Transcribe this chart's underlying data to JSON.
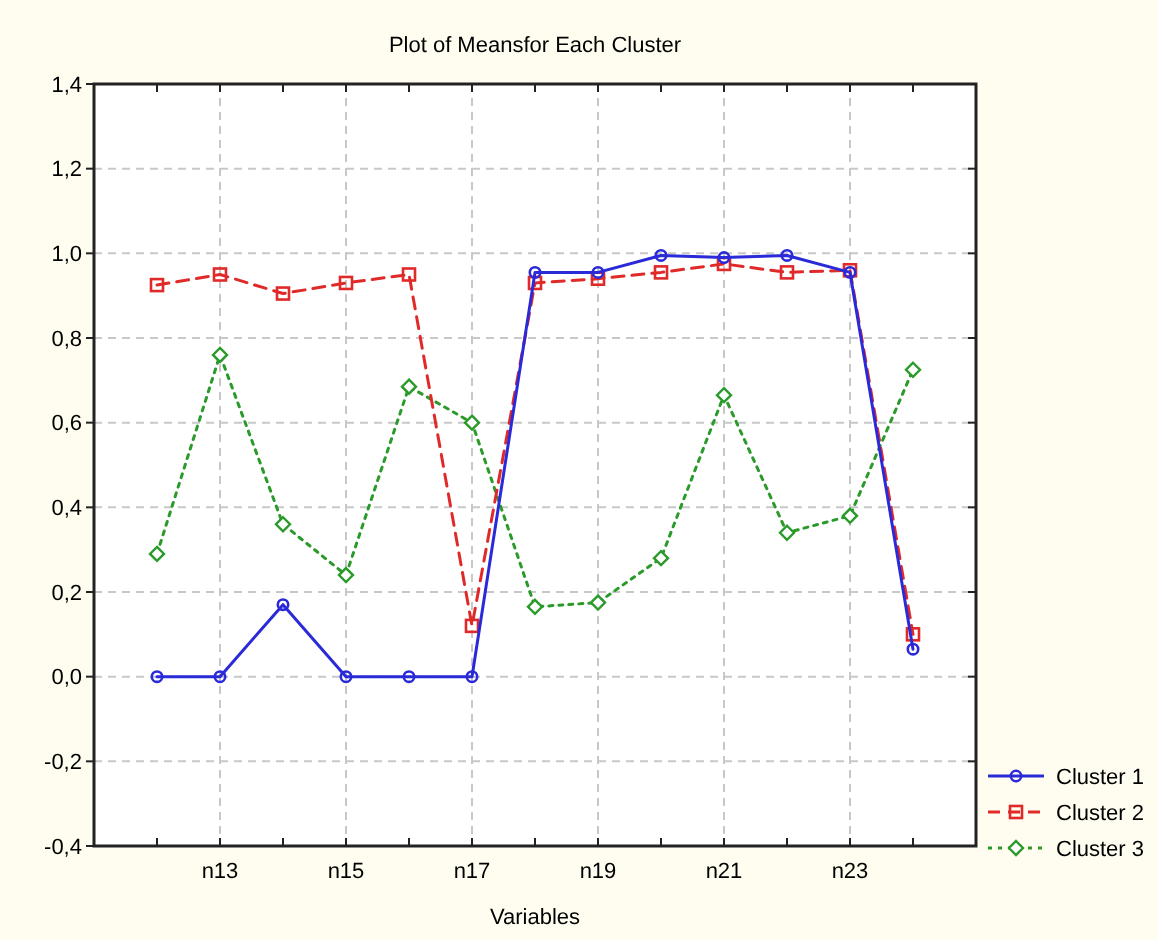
{
  "chart_data": {
    "type": "line",
    "title": "Plot of Meansfor Each Cluster",
    "xlabel": "Variables",
    "categories": [
      null,
      "n13",
      null,
      "n15",
      null,
      "n17",
      null,
      "n19",
      null,
      "n21",
      null,
      "n23",
      null
    ],
    "series": [
      {
        "name": "Cluster 1",
        "color": "#2a2ad8",
        "marker": "circle",
        "line_style": "solid",
        "values": [
          0,
          0,
          0.17,
          0,
          0,
          0,
          0.955,
          0.955,
          0.995,
          0.99,
          0.995,
          0.955,
          0.065
        ]
      },
      {
        "name": "Cluster 2",
        "color": "#e02a2a",
        "marker": "square",
        "line_style": "dashed",
        "values": [
          0.925,
          0.95,
          0.905,
          0.93,
          0.95,
          0.12,
          0.93,
          0.94,
          0.955,
          0.975,
          0.955,
          0.96,
          0.1
        ]
      },
      {
        "name": "Cluster 3",
        "color": "#2a9a2a",
        "marker": "diamond",
        "line_style": "dotted",
        "values": [
          0.29,
          0.76,
          0.36,
          0.24,
          0.685,
          0.6,
          0.165,
          0.175,
          0.28,
          0.665,
          0.34,
          0.38,
          0.725
        ]
      }
    ],
    "ylim": [
      -0.4,
      1.4
    ],
    "yticks": [
      {
        "value": -0.4,
        "label": "-0,4"
      },
      {
        "value": -0.2,
        "label": "-0,2"
      },
      {
        "value": 0,
        "label": "0,0"
      },
      {
        "value": 0.2,
        "label": "0,2"
      },
      {
        "value": 0.4,
        "label": "0,4"
      },
      {
        "value": 0.6,
        "label": "0,6"
      },
      {
        "value": 0.8,
        "label": "0,8"
      },
      {
        "value": 1,
        "label": "1,0"
      },
      {
        "value": 1.2,
        "label": "1,2"
      },
      {
        "value": 1.4,
        "label": "1,4"
      }
    ],
    "grid": true,
    "legend": "bottom right"
  }
}
